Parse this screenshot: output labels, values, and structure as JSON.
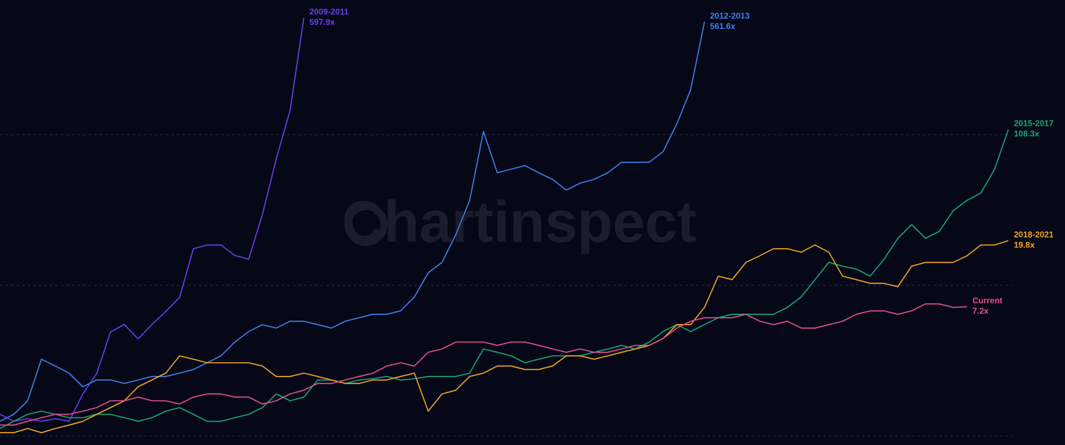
{
  "chart_data": {
    "type": "line",
    "watermark": "Chartinspect",
    "log_scale": true,
    "ylim": [
      0.87,
      784
    ],
    "gridlines": [
      1,
      10,
      100
    ],
    "grid": true,
    "series": [
      {
        "name": "2009-2011",
        "color": "#6d3df2",
        "end_label": "597.9x",
        "values": [
          1.39,
          1.25,
          1.3,
          1.25,
          1.3,
          1.25,
          1.9,
          2.6,
          4.9,
          5.5,
          4.4,
          5.5,
          6.7,
          8.3,
          17.5,
          18.5,
          18.5,
          15.8,
          14.9,
          29.6,
          69,
          145,
          597.9
        ]
      },
      {
        "name": "2012-2013",
        "color": "#4080ea",
        "end_label": "561.6x",
        "values": [
          1.25,
          1.39,
          1.71,
          3.23,
          2.91,
          2.61,
          2.12,
          2.35,
          2.35,
          2.23,
          2.35,
          2.48,
          2.48,
          2.61,
          2.76,
          3.06,
          3.4,
          4.2,
          4.93,
          5.48,
          5.2,
          5.77,
          5.77,
          5.48,
          5.2,
          5.77,
          6.09,
          6.42,
          6.42,
          6.76,
          8.36,
          12.1,
          14.2,
          21.7,
          36.6,
          105,
          55.9,
          59.0,
          62.4,
          55.9,
          50.5,
          42.9,
          47.7,
          50.5,
          55.9,
          65.6,
          65.6,
          65.6,
          77.1,
          118,
          199,
          561.6
        ]
      },
      {
        "name": "2015-2017",
        "color": "#18a874",
        "end_label": "108.3x",
        "values": [
          1.12,
          1.25,
          1.39,
          1.46,
          1.39,
          1.32,
          1.32,
          1.39,
          1.39,
          1.32,
          1.25,
          1.32,
          1.46,
          1.54,
          1.39,
          1.25,
          1.25,
          1.32,
          1.39,
          1.54,
          1.9,
          1.71,
          1.81,
          2.35,
          2.35,
          2.23,
          2.35,
          2.4,
          2.48,
          2.35,
          2.4,
          2.48,
          2.48,
          2.48,
          2.61,
          3.78,
          3.59,
          3.4,
          3.06,
          3.23,
          3.4,
          3.4,
          3.4,
          3.59,
          3.78,
          3.99,
          3.78,
          4.2,
          4.93,
          5.48,
          4.93,
          5.48,
          6.09,
          6.42,
          6.42,
          6.42,
          6.42,
          7.13,
          8.36,
          10.9,
          14.2,
          13.4,
          12.8,
          11.5,
          14.9,
          20.5,
          25.3,
          20.5,
          22.8,
          31.3,
          36.6,
          40.9,
          59.0,
          108.3
        ]
      },
      {
        "name": "2018-2021",
        "color": "#f5a623",
        "end_label": "19.8x",
        "values": [
          1.05,
          1.05,
          1.12,
          1.05,
          1.12,
          1.18,
          1.25,
          1.39,
          1.54,
          1.71,
          2.12,
          2.35,
          2.61,
          3.4,
          3.23,
          3.06,
          3.06,
          3.06,
          3.06,
          2.91,
          2.48,
          2.48,
          2.61,
          2.48,
          2.35,
          2.23,
          2.23,
          2.35,
          2.35,
          2.48,
          2.61,
          1.46,
          1.9,
          2.01,
          2.48,
          2.61,
          2.91,
          2.91,
          2.76,
          2.76,
          2.91,
          3.4,
          3.4,
          3.23,
          3.4,
          3.59,
          3.78,
          3.99,
          4.43,
          5.48,
          5.48,
          7.13,
          11.5,
          10.9,
          14.2,
          15.7,
          17.5,
          17.5,
          16.6,
          18.5,
          16.6,
          11.5,
          10.9,
          10.3,
          10.3,
          9.8,
          13.4,
          14.2,
          14.2,
          14.2,
          15.7,
          18.5,
          18.5,
          19.8
        ]
      },
      {
        "name": "Current",
        "color": "#e4508f",
        "end_label": "7.2x",
        "values": [
          1.18,
          1.18,
          1.25,
          1.32,
          1.39,
          1.39,
          1.46,
          1.54,
          1.71,
          1.71,
          1.81,
          1.71,
          1.71,
          1.63,
          1.81,
          1.9,
          1.9,
          1.81,
          1.81,
          1.63,
          1.71,
          1.9,
          2.01,
          2.23,
          2.23,
          2.35,
          2.48,
          2.61,
          2.91,
          3.06,
          2.91,
          3.59,
          3.78,
          4.2,
          4.2,
          4.2,
          3.99,
          4.2,
          4.2,
          3.99,
          3.78,
          3.59,
          3.78,
          3.59,
          3.59,
          3.78,
          3.99,
          3.99,
          4.43,
          5.2,
          5.77,
          6.09,
          6.09,
          6.09,
          6.42,
          5.77,
          5.48,
          5.77,
          5.2,
          5.2,
          5.48,
          5.77,
          6.42,
          6.76,
          6.76,
          6.42,
          6.76,
          7.52,
          7.52,
          7.13,
          7.2
        ]
      }
    ]
  }
}
